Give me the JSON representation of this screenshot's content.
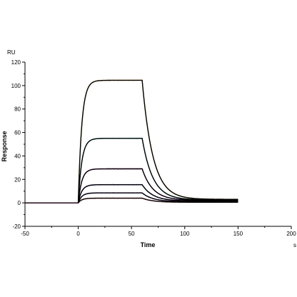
{
  "chart_data": {
    "type": "line",
    "title": "",
    "xlabel": "Time",
    "ylabel": "Response",
    "x_unit": "s",
    "y_unit": "RU",
    "xlim": [
      -50,
      200
    ],
    "ylim": [
      -20,
      120
    ],
    "x_ticks": [
      -50,
      0,
      50,
      100,
      150,
      200
    ],
    "y_ticks": [
      -20,
      0,
      20,
      40,
      60,
      80,
      100,
      120
    ],
    "grid": false,
    "legend": "none",
    "association_start": 0,
    "dissociation_start": 60,
    "end": 150,
    "series": [
      {
        "color": "#f0a800",
        "plateau": 104.5,
        "baseline": 3.0,
        "kon": 0.3,
        "koff": 0.1
      },
      {
        "color": "#00c8c8",
        "plateau": 55.0,
        "baseline": 2.5,
        "kon": 0.3,
        "koff": 0.1
      },
      {
        "color": "#d000c0",
        "plateau": 29.0,
        "baseline": 2.2,
        "kon": 0.3,
        "koff": 0.1
      },
      {
        "color": "#2020d0",
        "plateau": 15.5,
        "baseline": 1.6,
        "kon": 0.3,
        "koff": 0.1
      },
      {
        "color": "#8a2be2",
        "plateau": 8.5,
        "baseline": 1.0,
        "kon": 0.3,
        "koff": 0.1
      },
      {
        "color": "#ff4040",
        "plateau": 4.0,
        "baseline": 0.5,
        "kon": 0.3,
        "koff": 0.1
      }
    ],
    "fit_color": "#000000"
  }
}
